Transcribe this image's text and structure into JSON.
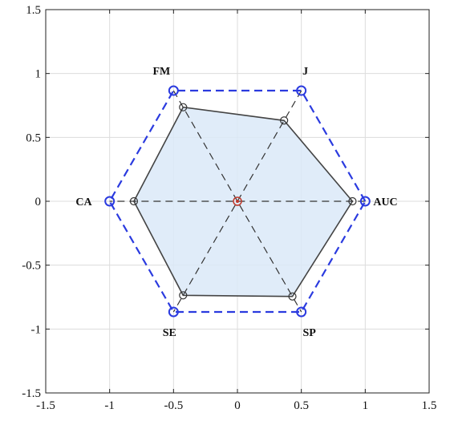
{
  "chart_data": {
    "type": "radar",
    "title": "",
    "xlabel": "",
    "ylabel": "",
    "xlim": [
      -1.5,
      1.5
    ],
    "ylim": [
      -1.5,
      1.5
    ],
    "xticks": [
      "-1.5",
      "-1",
      "-0.5",
      "0",
      "0.5",
      "1",
      "1.5"
    ],
    "yticks": [
      "1.5",
      "1",
      "0.5",
      "0",
      "-0.5",
      "-1",
      "-1.5"
    ],
    "xtick_values": [
      -1.5,
      -1,
      -0.5,
      0,
      0.5,
      1,
      1.5
    ],
    "ytick_values": [
      1.5,
      1,
      0.5,
      0,
      -0.5,
      -1,
      -1.5
    ],
    "grid": true,
    "axes": [
      {
        "label": "AUC",
        "angle_deg": 0
      },
      {
        "label": "J",
        "angle_deg": 60
      },
      {
        "label": "FM",
        "angle_deg": 120
      },
      {
        "label": "CA",
        "angle_deg": 180
      },
      {
        "label": "SE",
        "angle_deg": 240
      },
      {
        "label": "SP",
        "angle_deg": 300
      }
    ],
    "values": [
      0.9,
      0.73,
      0.85,
      0.81,
      0.85,
      0.86
    ],
    "reference_max": 1.0,
    "colors": {
      "fill": "#dbe9f8",
      "outline": "#444444",
      "reference": "#2b3bdf",
      "spokes": "#333333",
      "grid": "#dcdcdc",
      "center": "#c0392b"
    }
  }
}
